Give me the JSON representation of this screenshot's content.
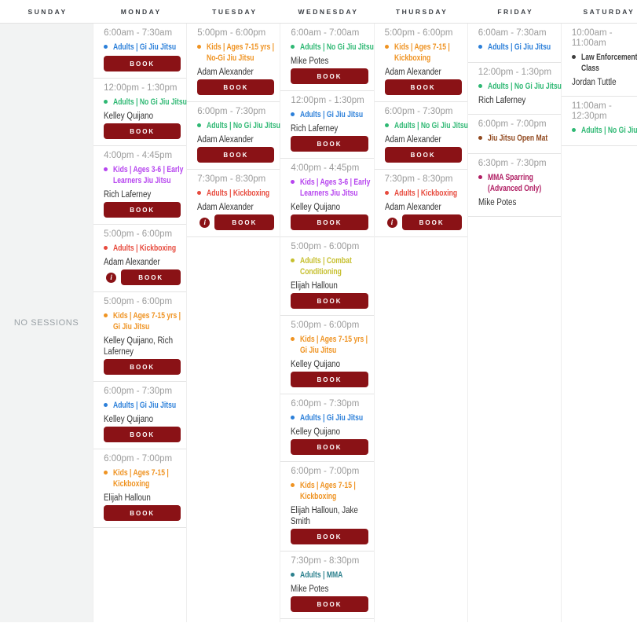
{
  "labels": {
    "book": "BOOK",
    "no_sessions": "NO SESSIONS",
    "info_icon": "i"
  },
  "colors": {
    "accent": "#8a1216",
    "blue": "#2b7fd9",
    "green": "#2eb873",
    "orange": "#ef9322",
    "purple": "#b644ef",
    "red": "#e74a3d",
    "olive": "#c6bf2d",
    "teal": "#2b808d",
    "brown": "#91491f",
    "magenta": "#b01e63",
    "dark": "#3d3d3d"
  },
  "days": [
    {
      "name": "SUNDAY",
      "sessions": []
    },
    {
      "name": "MONDAY",
      "sessions": [
        {
          "time": "6:00am - 7:30am",
          "title": "Adults | Gi Jiu Jitsu",
          "color": "blue",
          "instructors": null,
          "book": true,
          "info": false
        },
        {
          "time": "12:00pm - 1:30pm",
          "title": "Adults | No Gi Jiu Jitsu",
          "color": "green",
          "instructors": "Kelley Quijano",
          "book": true,
          "info": false
        },
        {
          "time": "4:00pm - 4:45pm",
          "title": "Kids | Ages 3-6 | Early\nLearners Jiu Jitsu",
          "color": "purple",
          "instructors": "Rich Laferney",
          "book": true,
          "info": false
        },
        {
          "time": "5:00pm - 6:00pm",
          "title": "Adults | Kickboxing",
          "color": "red",
          "instructors": "Adam Alexander",
          "book": true,
          "info": true
        },
        {
          "time": "5:00pm - 6:00pm",
          "title": "Kids | Ages 7-15 yrs |\nGi Jiu Jitsu",
          "color": "orange",
          "instructors": "Kelley Quijano, Rich\nLaferney",
          "book": true,
          "info": false
        },
        {
          "time": "6:00pm - 7:30pm",
          "title": "Adults | Gi Jiu Jitsu",
          "color": "blue",
          "instructors": "Kelley Quijano",
          "book": true,
          "info": false
        },
        {
          "time": "6:00pm - 7:00pm",
          "title": "Kids | Ages 7-15 |\nKickboxing",
          "color": "orange",
          "instructors": "Elijah Halloun",
          "book": true,
          "info": false
        }
      ]
    },
    {
      "name": "TUESDAY",
      "sessions": [
        {
          "time": "5:00pm - 6:00pm",
          "title": "Kids | Ages 7-15 yrs |\nNo-Gi Jiu Jitsu",
          "color": "orange",
          "instructors": "Adam Alexander",
          "book": true,
          "info": false
        },
        {
          "time": "6:00pm - 7:30pm",
          "title": "Adults | No Gi Jiu Jitsu",
          "color": "green",
          "instructors": "Adam Alexander",
          "book": true,
          "info": false
        },
        {
          "time": "7:30pm - 8:30pm",
          "title": "Adults | Kickboxing",
          "color": "red",
          "instructors": "Adam Alexander",
          "book": true,
          "info": true
        }
      ]
    },
    {
      "name": "WEDNESDAY",
      "sessions": [
        {
          "time": "6:00am - 7:00am",
          "title": "Adults | No Gi Jiu Jitsu",
          "color": "green",
          "instructors": "Mike Potes",
          "book": true,
          "info": false
        },
        {
          "time": "12:00pm - 1:30pm",
          "title": "Adults | Gi Jiu Jitsu",
          "color": "blue",
          "instructors": "Rich Laferney",
          "book": true,
          "info": false
        },
        {
          "time": "4:00pm - 4:45pm",
          "title": "Kids | Ages 3-6 | Early\nLearners Jiu Jitsu",
          "color": "purple",
          "instructors": "Kelley Quijano",
          "book": true,
          "info": false
        },
        {
          "time": "5:00pm - 6:00pm",
          "title": "Adults | Combat\nConditioning",
          "color": "olive",
          "instructors": "Elijah Halloun",
          "book": true,
          "info": false
        },
        {
          "time": "5:00pm - 6:00pm",
          "title": "Kids | Ages 7-15 yrs |\nGi Jiu Jitsu",
          "color": "orange",
          "instructors": "Kelley Quijano",
          "book": true,
          "info": false
        },
        {
          "time": "6:00pm - 7:30pm",
          "title": "Adults | Gi Jiu Jitsu",
          "color": "blue",
          "instructors": "Kelley Quijano",
          "book": true,
          "info": false
        },
        {
          "time": "6:00pm - 7:00pm",
          "title": "Kids | Ages 7-15 |\nKickboxing",
          "color": "orange",
          "instructors": "Elijah Halloun, Jake\nSmith",
          "book": true,
          "info": false
        },
        {
          "time": "7:30pm - 8:30pm",
          "title": "Adults | MMA",
          "color": "teal",
          "instructors": "Mike Potes",
          "book": true,
          "info": false
        }
      ]
    },
    {
      "name": "THURSDAY",
      "sessions": [
        {
          "time": "5:00pm - 6:00pm",
          "title": "Kids | Ages 7-15 |\nKickboxing",
          "color": "orange",
          "instructors": "Adam Alexander",
          "book": true,
          "info": false
        },
        {
          "time": "6:00pm - 7:30pm",
          "title": "Adults | No Gi Jiu Jitsu",
          "color": "green",
          "instructors": "Adam Alexander",
          "book": true,
          "info": false
        },
        {
          "time": "7:30pm - 8:30pm",
          "title": "Adults | Kickboxing",
          "color": "red",
          "instructors": "Adam Alexander",
          "book": true,
          "info": true
        }
      ]
    },
    {
      "name": "FRIDAY",
      "sessions": [
        {
          "time": "6:00am - 7:30am",
          "title": "Adults | Gi Jiu Jitsu",
          "color": "blue",
          "instructors": null,
          "book": false,
          "info": false
        },
        {
          "time": "12:00pm - 1:30pm",
          "title": "Adults | No Gi Jiu Jitsu",
          "color": "green",
          "instructors": "Rich Laferney",
          "book": false,
          "info": false
        },
        {
          "time": "6:00pm - 7:00pm",
          "title": "Jiu Jitsu Open Mat",
          "color": "brown",
          "instructors": null,
          "book": false,
          "info": false
        },
        {
          "time": "6:30pm - 7:30pm",
          "title": "MMA Sparring\n(Advanced Only)",
          "color": "magenta",
          "instructors": "Mike Potes",
          "book": false,
          "info": false
        }
      ]
    },
    {
      "name": "SATURDAY",
      "sessions": [
        {
          "time": "10:00am - 11:00am",
          "title": "Law Enforcement\nClass",
          "color": "dark",
          "instructors": "Jordan Tuttle",
          "book": false,
          "info": false
        },
        {
          "time": "11:00am - 12:30pm",
          "title": "Adults | No Gi Jiu Jitsu",
          "color": "green",
          "instructors": null,
          "book": false,
          "info": false
        }
      ]
    }
  ]
}
